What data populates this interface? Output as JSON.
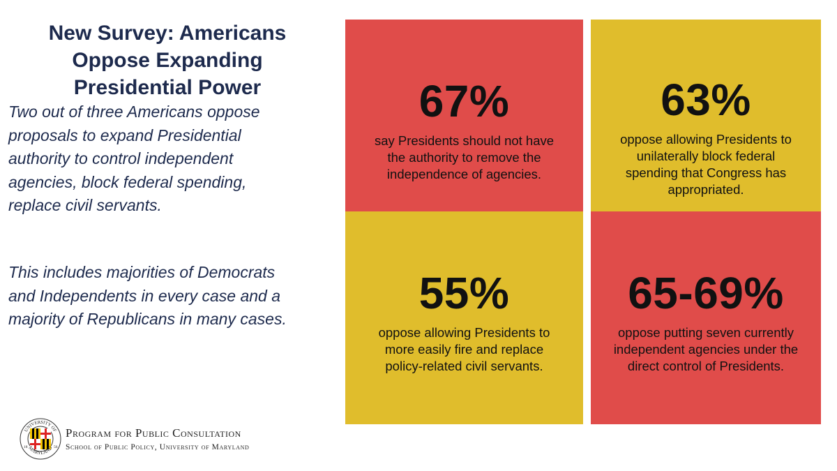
{
  "title": "New Survey: Americans Oppose Expanding Presidential Power",
  "intro": "Two out of three Americans oppose proposals to expand Presidential authority to control independent agencies, block federal spending, replace civil servants.",
  "detail": "This includes majorities of Democrats and Independents in every case and a majority of Republicans in many cases.",
  "stats": [
    {
      "value": "67%",
      "text": "say Presidents should not have the authority to remove the independence of agencies.",
      "color": "#e04c4a"
    },
    {
      "value": "63%",
      "text": "oppose allowing Presidents to unilaterally block federal spending that Congress has appropriated.",
      "color": "#e0bd2c"
    },
    {
      "value": "55%",
      "text": "oppose allowing Presidents to more easily fire and replace policy-related civil servants.",
      "color": "#e0bd2c"
    },
    {
      "value": "65-69%",
      "text": "oppose putting seven currently independent agencies under the direct control of Presidents.",
      "color": "#e04c4a"
    }
  ],
  "logo": {
    "line1": "Program for Public Consultation",
    "line2": "School of Public Policy, University of Maryland",
    "seal_text_top": "UNIVERSITY OF",
    "seal_text_bottom": "MARYLAND",
    "seal_year_left": "18",
    "seal_year_right": "56"
  }
}
